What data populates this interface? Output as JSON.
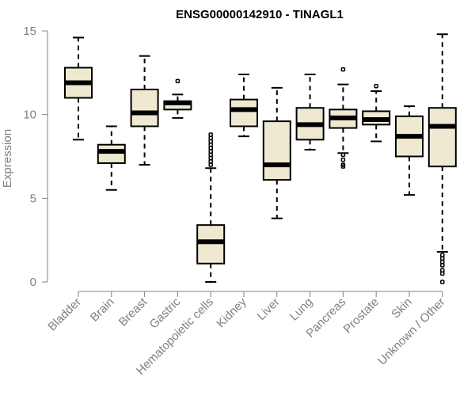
{
  "chart_data": {
    "type": "boxplot",
    "title": "ENSG00000142910 - TINAGL1",
    "ylabel": "Expression",
    "xlabel": "",
    "ylim": [
      0,
      15
    ],
    "yticks": [
      0,
      5,
      10,
      15
    ],
    "box_fill": "#efe9d2",
    "axis_color": "#808080",
    "categories": [
      "Bladder",
      "Brain",
      "Breast",
      "Gastric",
      "Hematopoietic cells",
      "Kidney",
      "Liver",
      "Lung",
      "Pancreas",
      "Prostate",
      "Skin",
      "Unknown / Other"
    ],
    "boxes": [
      {
        "label": "Bladder",
        "min": 8.5,
        "q1": 11.0,
        "median": 11.9,
        "q3": 12.8,
        "max": 14.6,
        "outliers": []
      },
      {
        "label": "Brain",
        "min": 5.5,
        "q1": 7.1,
        "median": 7.8,
        "q3": 8.2,
        "max": 9.3,
        "outliers": []
      },
      {
        "label": "Breast",
        "min": 7.0,
        "q1": 9.3,
        "median": 10.1,
        "q3": 11.5,
        "max": 13.5,
        "outliers": []
      },
      {
        "label": "Gastric",
        "min": 9.8,
        "q1": 10.3,
        "median": 10.7,
        "q3": 10.8,
        "max": 11.2,
        "outliers": [
          12.0
        ]
      },
      {
        "label": "Hematopoietic cells",
        "min": 0.0,
        "q1": 1.1,
        "median": 2.4,
        "q3": 3.4,
        "max": 6.8,
        "outliers": [
          7.0,
          7.2,
          7.4,
          7.6,
          7.8,
          8.0,
          8.2,
          8.4,
          8.6,
          8.8
        ]
      },
      {
        "label": "Kidney",
        "min": 8.7,
        "q1": 9.3,
        "median": 10.3,
        "q3": 10.9,
        "max": 12.4,
        "outliers": []
      },
      {
        "label": "Liver",
        "min": 3.8,
        "q1": 6.1,
        "median": 7.0,
        "q3": 9.6,
        "max": 11.6,
        "outliers": []
      },
      {
        "label": "Lung",
        "min": 7.9,
        "q1": 8.5,
        "median": 9.4,
        "q3": 10.4,
        "max": 12.4,
        "outliers": []
      },
      {
        "label": "Pancreas",
        "min": 7.7,
        "q1": 9.2,
        "median": 9.8,
        "q3": 10.3,
        "max": 11.8,
        "outliers": [
          12.7,
          7.6,
          7.3,
          7.0,
          6.9
        ]
      },
      {
        "label": "Prostate",
        "min": 8.4,
        "q1": 9.4,
        "median": 9.7,
        "q3": 10.2,
        "max": 11.4,
        "outliers": [
          11.7
        ]
      },
      {
        "label": "Skin",
        "min": 5.2,
        "q1": 7.5,
        "median": 8.7,
        "q3": 9.9,
        "max": 10.5,
        "outliers": []
      },
      {
        "label": "Unknown / Other",
        "min": 1.8,
        "q1": 6.9,
        "median": 9.3,
        "q3": 10.4,
        "max": 14.8,
        "outliers": [
          1.6,
          1.4,
          1.2,
          1.0,
          0.7,
          0.5,
          0.0
        ]
      }
    ]
  }
}
